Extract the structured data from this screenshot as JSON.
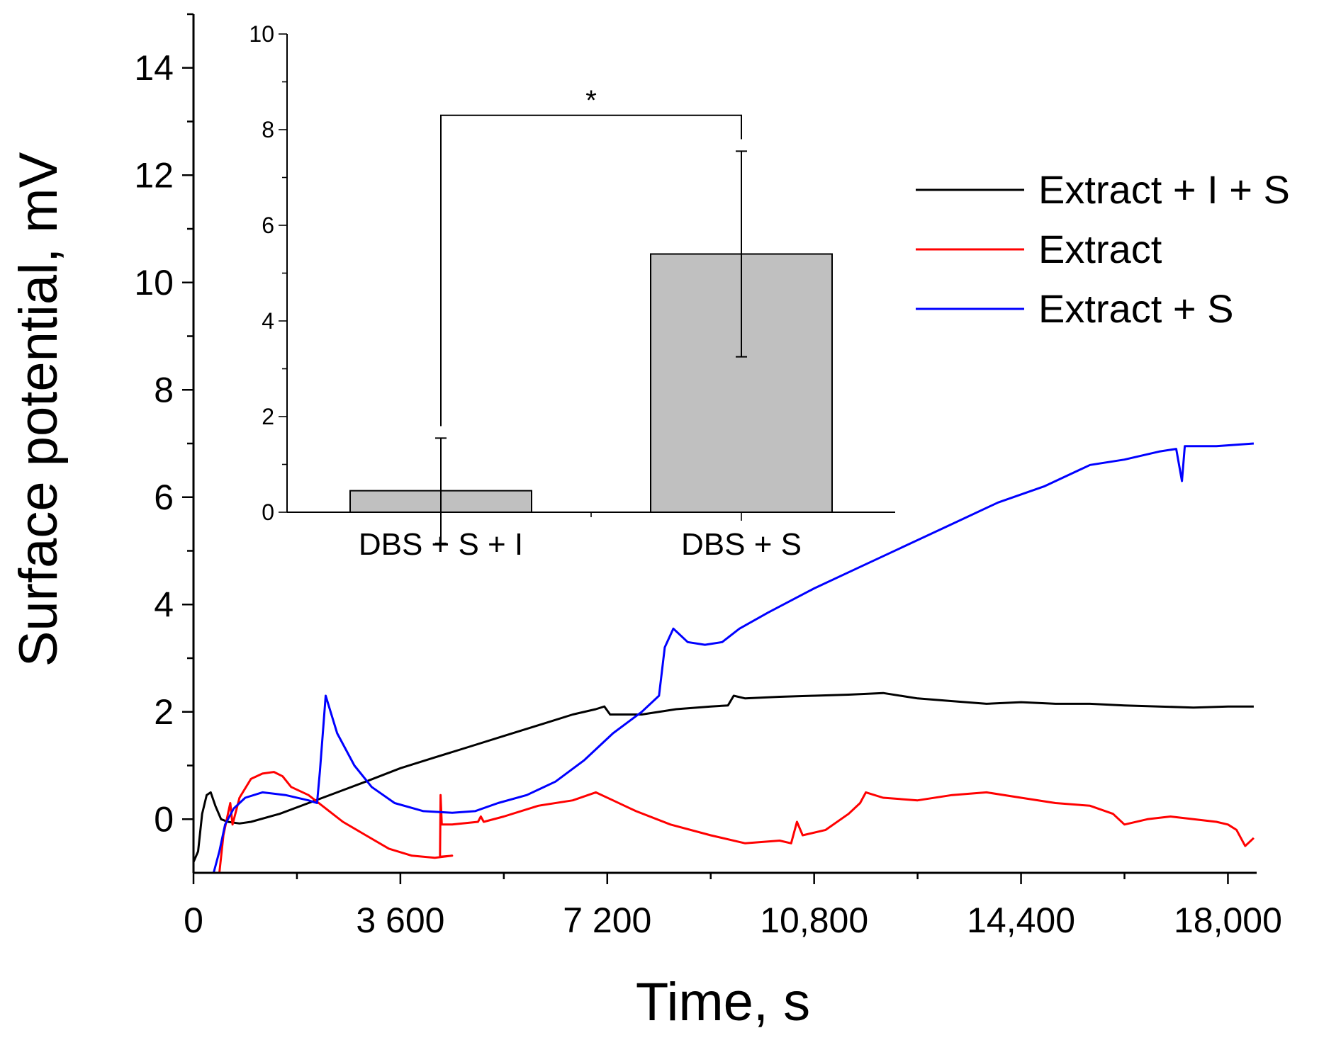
{
  "chart_data": [
    {
      "type": "line",
      "xlabel": "Time, s",
      "ylabel": "Surface potential, mV",
      "xlim": [
        0,
        18500
      ],
      "ylim": [
        -1,
        15
      ],
      "x_ticks": [
        0,
        3600,
        7200,
        10800,
        14400,
        18000
      ],
      "x_tick_labels": [
        "0",
        "3 600",
        "7 200",
        "10,800",
        "14,400",
        "18,000"
      ],
      "y_ticks": [
        0,
        2,
        4,
        6,
        8,
        10,
        12,
        14
      ],
      "y_tick_labels": [
        "0",
        "2",
        "4",
        "6",
        "8",
        "10",
        "12",
        "14"
      ],
      "legend_position": "right",
      "series": [
        {
          "name": "Extract + I + S",
          "color": "#000000",
          "points": [
            [
              0,
              -0.8
            ],
            [
              80,
              -0.6
            ],
            [
              150,
              0.1
            ],
            [
              230,
              0.45
            ],
            [
              300,
              0.5
            ],
            [
              380,
              0.25
            ],
            [
              480,
              0.0
            ],
            [
              600,
              -0.05
            ],
            [
              800,
              -0.08
            ],
            [
              1000,
              -0.05
            ],
            [
              1500,
              0.1
            ],
            [
              2000,
              0.3
            ],
            [
              2500,
              0.5
            ],
            [
              3000,
              0.7
            ],
            [
              3600,
              0.95
            ],
            [
              4200,
              1.15
            ],
            [
              4800,
              1.35
            ],
            [
              5400,
              1.55
            ],
            [
              6000,
              1.75
            ],
            [
              6600,
              1.95
            ],
            [
              7000,
              2.05
            ],
            [
              7150,
              2.1
            ],
            [
              7250,
              1.95
            ],
            [
              7800,
              1.95
            ],
            [
              8400,
              2.05
            ],
            [
              9000,
              2.1
            ],
            [
              9300,
              2.12
            ],
            [
              9400,
              2.3
            ],
            [
              9600,
              2.25
            ],
            [
              10200,
              2.28
            ],
            [
              10800,
              2.3
            ],
            [
              11400,
              2.32
            ],
            [
              12000,
              2.35
            ],
            [
              12600,
              2.25
            ],
            [
              13200,
              2.2
            ],
            [
              13800,
              2.15
            ],
            [
              14400,
              2.18
            ],
            [
              15000,
              2.15
            ],
            [
              15600,
              2.15
            ],
            [
              16200,
              2.12
            ],
            [
              16800,
              2.1
            ],
            [
              17400,
              2.08
            ],
            [
              18000,
              2.1
            ],
            [
              18450,
              2.1
            ]
          ]
        },
        {
          "name": "Extract",
          "color": "#ff0000",
          "points": [
            [
              450,
              -1.0
            ],
            [
              520,
              -0.3
            ],
            [
              600,
              0.1
            ],
            [
              640,
              0.3
            ],
            [
              680,
              -0.1
            ],
            [
              800,
              0.4
            ],
            [
              1000,
              0.75
            ],
            [
              1200,
              0.85
            ],
            [
              1400,
              0.88
            ],
            [
              1550,
              0.8
            ],
            [
              1700,
              0.6
            ],
            [
              2000,
              0.45
            ],
            [
              2300,
              0.2
            ],
            [
              2600,
              -0.05
            ],
            [
              3000,
              -0.3
            ],
            [
              3400,
              -0.55
            ],
            [
              3800,
              -0.68
            ],
            [
              4200,
              -0.72
            ],
            [
              4500,
              -0.68
            ],
            [
              4290,
              -0.7
            ],
            [
              4300,
              0.45
            ],
            [
              4320,
              -0.1
            ],
            [
              4500,
              -0.1
            ],
            [
              4950,
              -0.05
            ],
            [
              5000,
              0.05
            ],
            [
              5050,
              -0.05
            ],
            [
              5400,
              0.05
            ],
            [
              6000,
              0.25
            ],
            [
              6600,
              0.35
            ],
            [
              7000,
              0.5
            ],
            [
              7300,
              0.35
            ],
            [
              7700,
              0.15
            ],
            [
              8300,
              -0.1
            ],
            [
              9000,
              -0.3
            ],
            [
              9600,
              -0.45
            ],
            [
              10200,
              -0.4
            ],
            [
              10400,
              -0.45
            ],
            [
              10500,
              -0.05
            ],
            [
              10600,
              -0.3
            ],
            [
              11000,
              -0.2
            ],
            [
              11400,
              0.1
            ],
            [
              11600,
              0.3
            ],
            [
              11700,
              0.5
            ],
            [
              12000,
              0.4
            ],
            [
              12600,
              0.35
            ],
            [
              13200,
              0.45
            ],
            [
              13800,
              0.5
            ],
            [
              14400,
              0.4
            ],
            [
              15000,
              0.3
            ],
            [
              15600,
              0.25
            ],
            [
              16000,
              0.1
            ],
            [
              16200,
              -0.1
            ],
            [
              16600,
              0.0
            ],
            [
              17000,
              0.05
            ],
            [
              17400,
              0.0
            ],
            [
              17800,
              -0.05
            ],
            [
              18000,
              -0.1
            ],
            [
              18150,
              -0.2
            ],
            [
              18300,
              -0.5
            ],
            [
              18450,
              -0.35
            ]
          ]
        },
        {
          "name": "Extract + S",
          "color": "#0000ff",
          "points": [
            [
              350,
              -1.0
            ],
            [
              450,
              -0.6
            ],
            [
              550,
              -0.1
            ],
            [
              700,
              0.2
            ],
            [
              900,
              0.4
            ],
            [
              1200,
              0.5
            ],
            [
              1600,
              0.45
            ],
            [
              2000,
              0.35
            ],
            [
              2150,
              0.3
            ],
            [
              2200,
              0.9
            ],
            [
              2300,
              2.3
            ],
            [
              2500,
              1.6
            ],
            [
              2800,
              1.0
            ],
            [
              3100,
              0.6
            ],
            [
              3500,
              0.3
            ],
            [
              4000,
              0.15
            ],
            [
              4500,
              0.12
            ],
            [
              4900,
              0.15
            ],
            [
              5300,
              0.3
            ],
            [
              5800,
              0.45
            ],
            [
              6300,
              0.7
            ],
            [
              6800,
              1.1
            ],
            [
              7300,
              1.6
            ],
            [
              7800,
              2.0
            ],
            [
              8100,
              2.3
            ],
            [
              8200,
              3.2
            ],
            [
              8350,
              3.55
            ],
            [
              8600,
              3.3
            ],
            [
              8900,
              3.25
            ],
            [
              9200,
              3.3
            ],
            [
              9500,
              3.55
            ],
            [
              10000,
              3.85
            ],
            [
              10800,
              4.3
            ],
            [
              11600,
              4.7
            ],
            [
              12400,
              5.1
            ],
            [
              13200,
              5.5
            ],
            [
              14000,
              5.9
            ],
            [
              14800,
              6.2
            ],
            [
              15600,
              6.6
            ],
            [
              16200,
              6.7
            ],
            [
              16800,
              6.85
            ],
            [
              17100,
              6.9
            ],
            [
              17200,
              6.3
            ],
            [
              17250,
              6.95
            ],
            [
              17800,
              6.95
            ],
            [
              18450,
              7.0
            ]
          ]
        }
      ]
    },
    {
      "type": "bar",
      "position": "inset top-left",
      "categories": [
        "DBS + S + I",
        "DBS + S"
      ],
      "values": [
        0.45,
        5.4
      ],
      "errors": [
        1.1,
        2.15
      ],
      "ylim": [
        0,
        10
      ],
      "y_ticks": [
        0,
        2,
        4,
        6,
        8,
        10
      ],
      "y_tick_labels": [
        "0",
        "2",
        "4",
        "6",
        "8",
        "10"
      ],
      "bar_color": "#c0c0c0",
      "significance_label": "*",
      "significance_bracket_bottoms": [
        1.8,
        7.8
      ],
      "significance_bracket_top": 8.3
    }
  ]
}
